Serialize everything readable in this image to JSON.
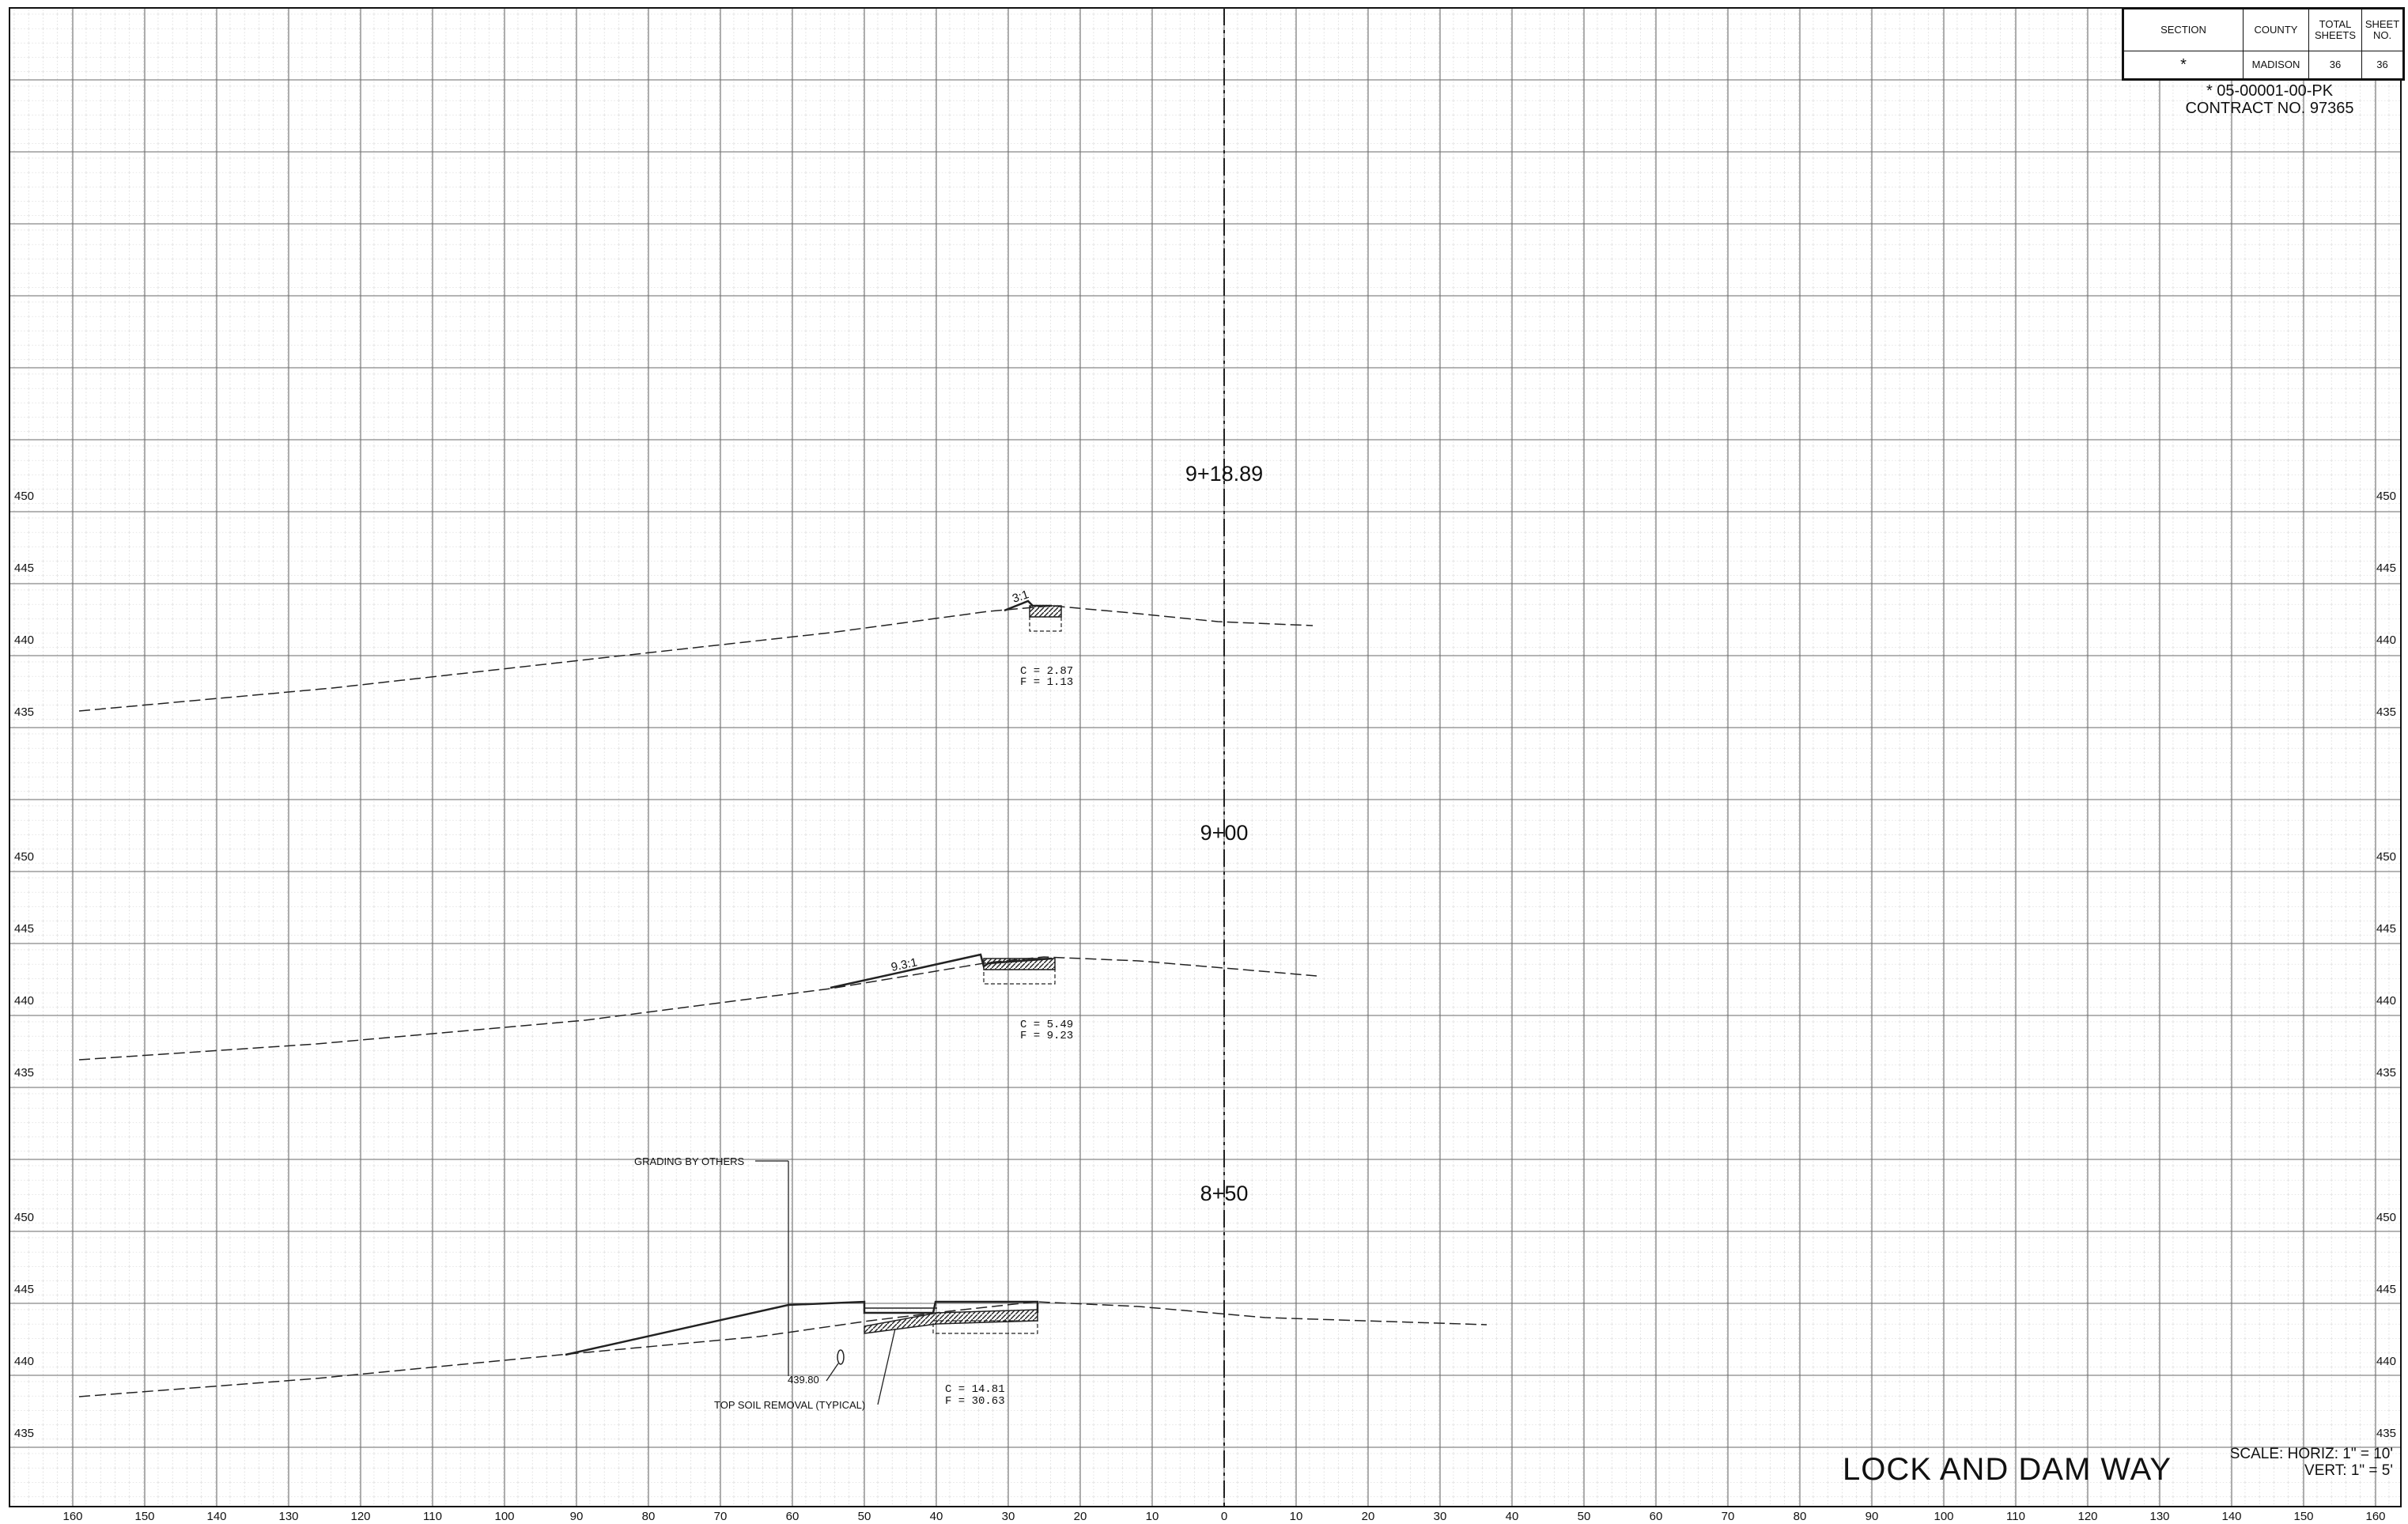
{
  "title_block": {
    "headers": [
      "SECTION",
      "COUNTY",
      "TOTAL SHEETS",
      "SHEET NO."
    ],
    "values": [
      "*",
      "MADISON",
      "36",
      "36"
    ]
  },
  "contract": {
    "line1": "* 05-00001-00-PK",
    "line2": "CONTRACT NO. 97365"
  },
  "drawing_title": "LOCK AND DAM WAY",
  "scale": {
    "horiz": "SCALE: HORIZ: 1\" = 10'",
    "vert": "VERT: 1\" = 5'"
  },
  "x_axis_labels": [
    "160",
    "150",
    "140",
    "130",
    "120",
    "110",
    "100",
    "90",
    "80",
    "70",
    "60",
    "50",
    "40",
    "30",
    "20",
    "10",
    "0",
    "10",
    "20",
    "30",
    "40",
    "50",
    "60",
    "70",
    "80",
    "90",
    "100",
    "110",
    "120",
    "130",
    "140",
    "150",
    "160"
  ],
  "sections": [
    {
      "station": "9+18.89",
      "elev_labels": [
        "450",
        "445",
        "440",
        "435"
      ],
      "cut": "C = 2.87",
      "fill": "F = 1.13",
      "slope": "3:1"
    },
    {
      "station": "9+00",
      "elev_labels": [
        "450",
        "445",
        "440",
        "435"
      ],
      "cut": "C = 5.49",
      "fill": "F = 9.23",
      "slope": "9.3:1"
    },
    {
      "station": "8+50",
      "elev_labels": [
        "450",
        "445",
        "440",
        "435"
      ],
      "cut": "C = 14.81",
      "fill": "F = 30.63",
      "notes": {
        "grading": "GRADING BY OTHERS",
        "elevation": "439.80",
        "topsoil": "TOP SOIL REMOVAL (TYPICAL)"
      }
    }
  ]
}
